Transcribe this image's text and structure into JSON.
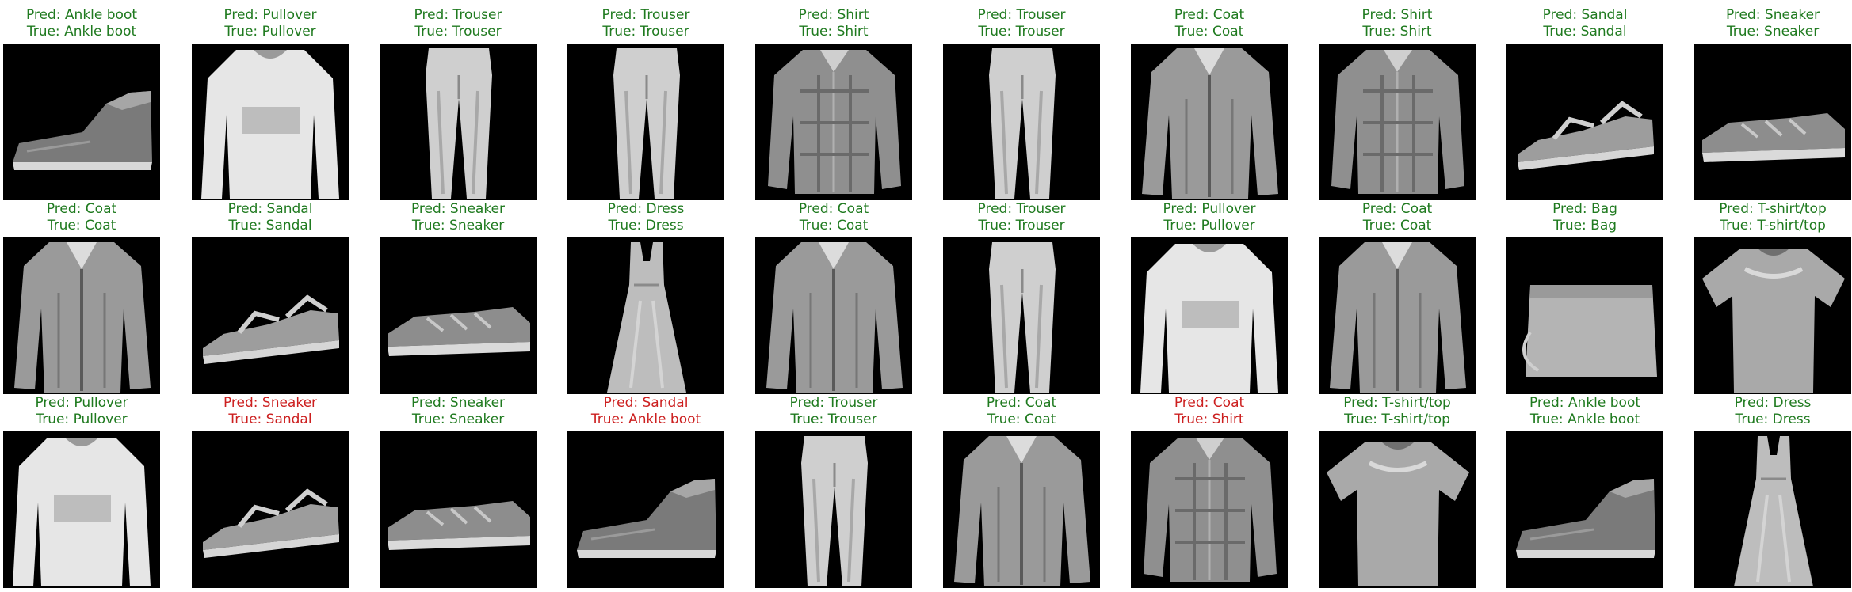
{
  "colors": {
    "correct": "#1f7a1f",
    "incorrect": "#cc1f1f",
    "image_bg": "#000000"
  },
  "prefixes": {
    "pred": "Pred: ",
    "true": "True: "
  },
  "grid": {
    "rows": 3,
    "cols": 10
  },
  "samples": [
    {
      "pred": "Ankle boot",
      "true": "Ankle boot",
      "correct": true,
      "icon": "ankle-boot"
    },
    {
      "pred": "Pullover",
      "true": "Pullover",
      "correct": true,
      "icon": "pullover"
    },
    {
      "pred": "Trouser",
      "true": "Trouser",
      "correct": true,
      "icon": "trouser"
    },
    {
      "pred": "Trouser",
      "true": "Trouser",
      "correct": true,
      "icon": "trouser"
    },
    {
      "pred": "Shirt",
      "true": "Shirt",
      "correct": true,
      "icon": "shirt"
    },
    {
      "pred": "Trouser",
      "true": "Trouser",
      "correct": true,
      "icon": "trouser"
    },
    {
      "pred": "Coat",
      "true": "Coat",
      "correct": true,
      "icon": "coat"
    },
    {
      "pred": "Shirt",
      "true": "Shirt",
      "correct": true,
      "icon": "shirt"
    },
    {
      "pred": "Sandal",
      "true": "Sandal",
      "correct": true,
      "icon": "sandal"
    },
    {
      "pred": "Sneaker",
      "true": "Sneaker",
      "correct": true,
      "icon": "sneaker"
    },
    {
      "pred": "Coat",
      "true": "Coat",
      "correct": true,
      "icon": "coat"
    },
    {
      "pred": "Sandal",
      "true": "Sandal",
      "correct": true,
      "icon": "sandal"
    },
    {
      "pred": "Sneaker",
      "true": "Sneaker",
      "correct": true,
      "icon": "sneaker"
    },
    {
      "pred": "Dress",
      "true": "Dress",
      "correct": true,
      "icon": "dress"
    },
    {
      "pred": "Coat",
      "true": "Coat",
      "correct": true,
      "icon": "coat"
    },
    {
      "pred": "Trouser",
      "true": "Trouser",
      "correct": true,
      "icon": "trouser"
    },
    {
      "pred": "Pullover",
      "true": "Pullover",
      "correct": true,
      "icon": "pullover"
    },
    {
      "pred": "Coat",
      "true": "Coat",
      "correct": true,
      "icon": "coat"
    },
    {
      "pred": "Bag",
      "true": "Bag",
      "correct": true,
      "icon": "bag"
    },
    {
      "pred": "T-shirt/top",
      "true": "T-shirt/top",
      "correct": true,
      "icon": "tshirt"
    },
    {
      "pred": "Pullover",
      "true": "Pullover",
      "correct": true,
      "icon": "pullover"
    },
    {
      "pred": "Sneaker",
      "true": "Sandal",
      "correct": false,
      "icon": "sandal"
    },
    {
      "pred": "Sneaker",
      "true": "Sneaker",
      "correct": true,
      "icon": "sneaker"
    },
    {
      "pred": "Sandal",
      "true": "Ankle boot",
      "correct": false,
      "icon": "ankle-boot"
    },
    {
      "pred": "Trouser",
      "true": "Trouser",
      "correct": true,
      "icon": "trouser"
    },
    {
      "pred": "Coat",
      "true": "Coat",
      "correct": true,
      "icon": "coat"
    },
    {
      "pred": "Coat",
      "true": "Shirt",
      "correct": false,
      "icon": "shirt"
    },
    {
      "pred": "T-shirt/top",
      "true": "T-shirt/top",
      "correct": true,
      "icon": "tshirt"
    },
    {
      "pred": "Ankle boot",
      "true": "Ankle boot",
      "correct": true,
      "icon": "ankle-boot"
    },
    {
      "pred": "Dress",
      "true": "Dress",
      "correct": true,
      "icon": "dress"
    }
  ]
}
